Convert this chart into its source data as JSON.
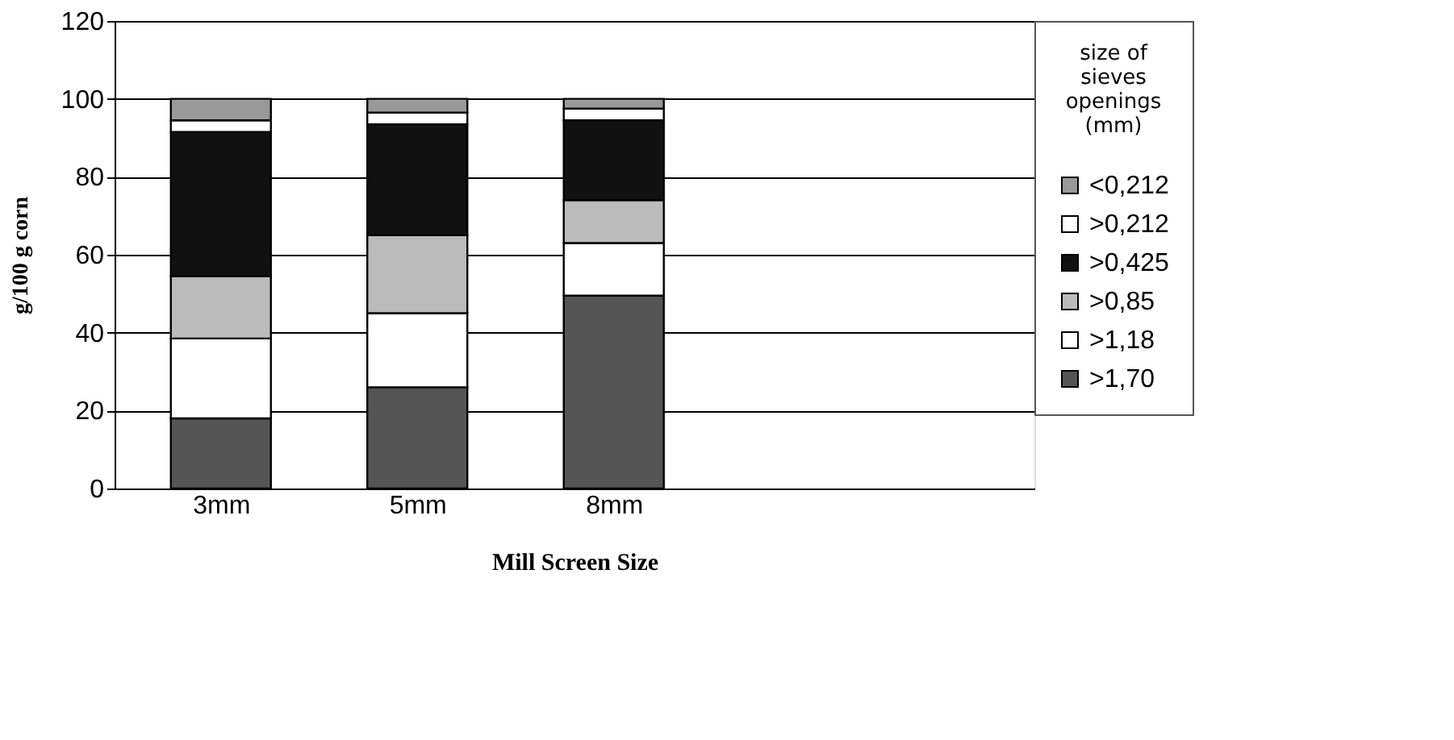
{
  "chart_data": {
    "type": "bar",
    "stacked": true,
    "xlabel": "Mill Screen Size",
    "ylabel": "g/100 g corn",
    "legend_title": "size of sieves openings (mm)",
    "categories": [
      "3mm",
      "5mm",
      "8mm"
    ],
    "series": [
      {
        "name": ">1,70",
        "color": "#555555",
        "values": [
          18,
          26,
          49.5
        ]
      },
      {
        "name": ">1,18",
        "color": "#ffffff",
        "values": [
          20.5,
          19,
          13.5
        ]
      },
      {
        "name": ">0,85",
        "color": "#bbbbbb",
        "values": [
          16,
          20,
          11
        ]
      },
      {
        "name": ">0,425",
        "color": "#111111",
        "values": [
          37,
          28.5,
          20.5
        ]
      },
      {
        "name": ">0,212",
        "color": "#ffffff",
        "values": [
          3,
          3,
          3
        ]
      },
      {
        "name": "<0,212",
        "color": "#999999",
        "values": [
          5.5,
          3.5,
          2.5
        ]
      }
    ],
    "ylim": [
      0,
      120
    ],
    "yticks": [
      0,
      20,
      40,
      60,
      80,
      100,
      120
    ],
    "grid": "y",
    "legend": "right"
  }
}
